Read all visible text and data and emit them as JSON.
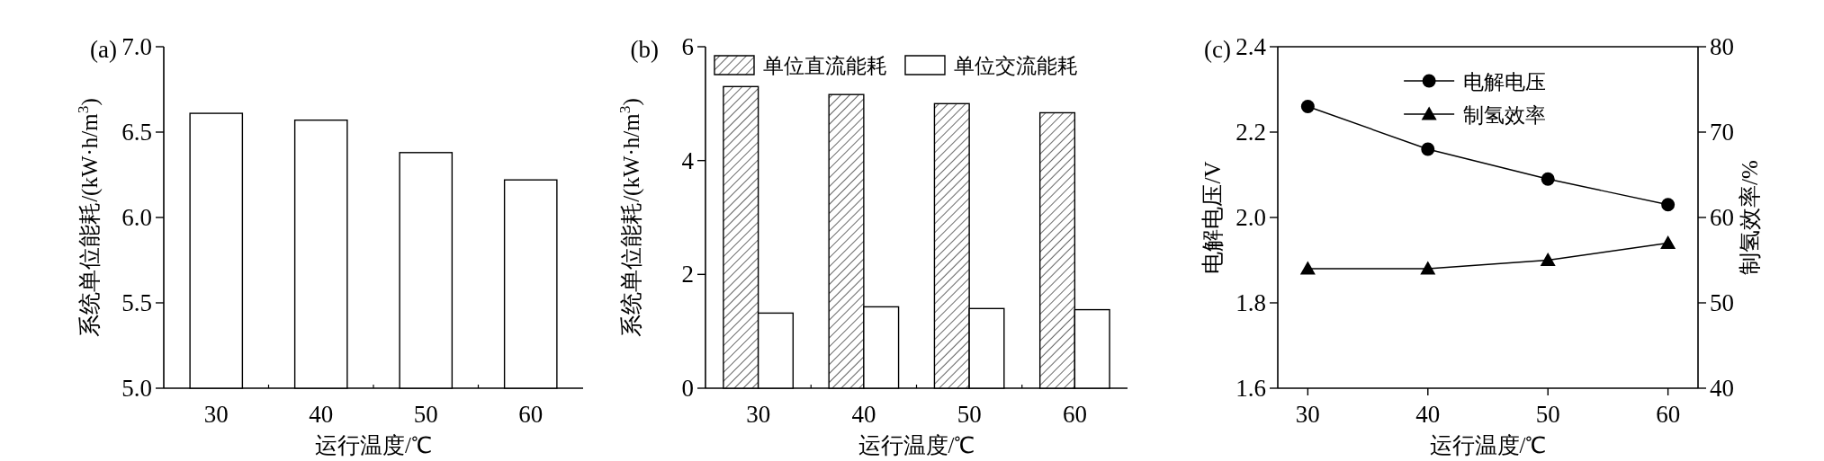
{
  "chart_data": [
    {
      "type": "bar",
      "title": "(a)",
      "xlabel": "运行温度/℃",
      "ylabel": "系统单位能耗/(kW·h/m$^{3}$)",
      "categories": [
        "30",
        "40",
        "50",
        "60"
      ],
      "values": [
        6.61,
        6.57,
        6.38,
        6.22
      ],
      "color": "#ffffff",
      "ylim": [
        5,
        7
      ],
      "yticks": [
        {
          "value": 5,
          "label": "5.0"
        },
        {
          "value": 5.5,
          "label": "5.5"
        },
        {
          "value": 6,
          "label": "6.0"
        },
        {
          "value": 6.5,
          "label": "6.5"
        },
        {
          "value": 7,
          "label": "7.0"
        }
      ]
    },
    {
      "type": "bar",
      "title": "(b)",
      "xlabel": "运行温度/℃",
      "ylabel": "系统单位能耗/(kW·h/m$^{3}$)",
      "categories": [
        "30",
        "40",
        "50",
        "60"
      ],
      "series": [
        {
          "name": "单位直流能耗",
          "color": "#000000",
          "values": [
            5.3,
            5.16,
            5.0,
            4.84
          ]
        },
        {
          "name": "单位交流能耗",
          "color": "#ffffff",
          "values": [
            1.32,
            1.43,
            1.4,
            1.38
          ]
        }
      ],
      "ylim": [
        0,
        6
      ],
      "yticks": [
        0,
        2,
        4,
        6
      ],
      "legend": "top"
    },
    {
      "type": "line",
      "title": "(c)",
      "xlabel": "运行温度/℃",
      "ylabel": "电解电压/V",
      "y2label": "制氢效率/%",
      "x": [
        30,
        40,
        50,
        60
      ],
      "series": [
        {
          "name": "电解电压",
          "color": "#000000",
          "marker": "circle",
          "values": [
            2.26,
            2.16,
            2.09,
            2.03
          ]
        },
        {
          "name": "制氢效率",
          "color": "#000000",
          "marker": "triangle",
          "axis": "y2",
          "values": [
            54,
            54,
            55,
            57
          ]
        }
      ],
      "xlim": [
        27.5,
        62.5
      ],
      "xticks": [
        30,
        40,
        50,
        60
      ],
      "ylim": [
        1.6,
        2.4
      ],
      "yticks": [
        {
          "value": 1.6,
          "label": "1.6"
        },
        {
          "value": 1.8,
          "label": "1.8"
        },
        {
          "value": 2,
          "label": "2.0"
        },
        {
          "value": 2.2,
          "label": "2.2"
        },
        {
          "value": 2.4,
          "label": "2.4"
        }
      ],
      "y2lim": [
        40,
        80
      ],
      "y2ticks": [
        40,
        50,
        60,
        70,
        80
      ],
      "legend": "top"
    }
  ]
}
